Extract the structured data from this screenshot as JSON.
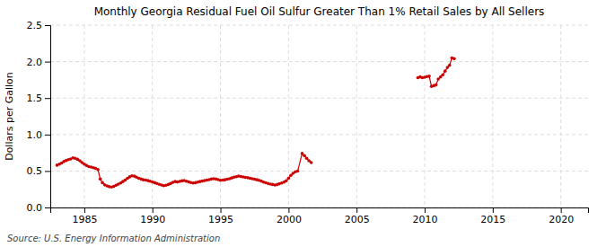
{
  "chart_data": {
    "type": "line",
    "title": "Monthly Georgia Residual Fuel Oil Sulfur Greater Than 1% Retail Sales by All Sellers",
    "ylabel": "Dollars per Gallon",
    "source": "Source: U.S. Energy Information Administration",
    "color": "#cc0000",
    "marker": "circle",
    "line_style": "solid",
    "grid": true,
    "xlim": [
      1982.5,
      2022
    ],
    "ylim": [
      0.0,
      2.5
    ],
    "xticks": [
      1985,
      1990,
      1995,
      2000,
      2005,
      2010,
      2015,
      2020
    ],
    "yticks": [
      {
        "value": 0.0,
        "label": "0.0"
      },
      0.5,
      {
        "value": 1.0,
        "label": "1.0"
      },
      1.5,
      {
        "value": 2.0,
        "label": "2.0"
      },
      2.5
    ],
    "x": [
      1983.0,
      1983.17,
      1983.33,
      1983.5,
      1983.67,
      1983.83,
      1984.0,
      1984.17,
      1984.33,
      1984.5,
      1984.67,
      1984.83,
      1985.0,
      1985.17,
      1985.33,
      1985.5,
      1985.67,
      1985.83,
      1986.0,
      1986.17,
      1986.33,
      1986.5,
      1986.67,
      1986.83,
      1987.0,
      1987.17,
      1987.33,
      1987.5,
      1987.67,
      1987.83,
      1988.0,
      1988.17,
      1988.33,
      1988.5,
      1988.67,
      1988.83,
      1989.0,
      1989.17,
      1989.33,
      1989.5,
      1989.67,
      1989.83,
      1990.0,
      1990.17,
      1990.33,
      1990.5,
      1990.67,
      1990.83,
      1991.0,
      1991.17,
      1991.33,
      1991.5,
      1991.67,
      1991.83,
      1992.0,
      1992.17,
      1992.33,
      1992.5,
      1992.67,
      1992.83,
      1993.0,
      1993.17,
      1993.33,
      1993.5,
      1993.67,
      1993.83,
      1994.0,
      1994.17,
      1994.33,
      1994.5,
      1994.67,
      1994.83,
      1995.0,
      1995.17,
      1995.33,
      1995.5,
      1995.67,
      1995.83,
      1996.0,
      1996.17,
      1996.33,
      1996.5,
      1996.67,
      1996.83,
      1997.0,
      1997.17,
      1997.33,
      1997.5,
      1997.67,
      1997.83,
      1998.0,
      1998.17,
      1998.33,
      1998.5,
      1998.67,
      1998.83,
      1999.0,
      1999.17,
      1999.33,
      1999.5,
      1999.67,
      1999.83,
      2000.0,
      2000.17,
      2000.33,
      2000.5,
      2000.67,
      2001.0,
      2001.17,
      2001.33,
      2001.5,
      2001.67,
      null,
      2009.5,
      2009.67,
      2009.83,
      2010.0,
      2010.17,
      2010.33,
      2010.5,
      2010.67,
      2010.83,
      2011.0,
      2011.17,
      2011.33,
      2011.5,
      2011.67,
      2011.83,
      2012.0,
      2012.17
    ],
    "values": [
      0.58,
      0.595,
      0.61,
      0.63,
      0.645,
      0.655,
      0.665,
      0.68,
      0.675,
      0.66,
      0.64,
      0.615,
      0.595,
      0.575,
      0.56,
      0.555,
      0.545,
      0.535,
      0.52,
      0.39,
      0.34,
      0.31,
      0.295,
      0.285,
      0.28,
      0.29,
      0.305,
      0.32,
      0.335,
      0.355,
      0.375,
      0.4,
      0.42,
      0.435,
      0.43,
      0.415,
      0.4,
      0.39,
      0.38,
      0.375,
      0.368,
      0.36,
      0.35,
      0.34,
      0.33,
      0.318,
      0.308,
      0.298,
      0.305,
      0.315,
      0.328,
      0.345,
      0.355,
      0.35,
      0.358,
      0.365,
      0.37,
      0.36,
      0.35,
      0.342,
      0.335,
      0.34,
      0.348,
      0.355,
      0.362,
      0.368,
      0.375,
      0.382,
      0.39,
      0.395,
      0.39,
      0.382,
      0.372,
      0.375,
      0.38,
      0.388,
      0.395,
      0.405,
      0.415,
      0.422,
      0.43,
      0.425,
      0.418,
      0.412,
      0.408,
      0.4,
      0.395,
      0.388,
      0.38,
      0.372,
      0.362,
      0.348,
      0.338,
      0.328,
      0.32,
      0.315,
      0.308,
      0.315,
      0.325,
      0.335,
      0.348,
      0.365,
      0.4,
      0.44,
      0.468,
      0.49,
      0.498,
      0.74,
      0.71,
      0.675,
      0.64,
      0.615,
      null,
      1.78,
      1.79,
      1.78,
      1.785,
      1.795,
      1.8,
      1.66,
      1.67,
      1.68,
      1.76,
      1.79,
      1.82,
      1.87,
      1.92,
      1.95,
      2.05,
      2.04
    ]
  }
}
